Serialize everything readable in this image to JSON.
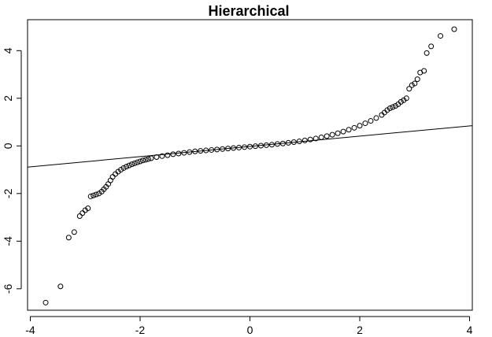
{
  "chart_data": {
    "type": "scatter",
    "title": "Hierarchical",
    "xlabel": "",
    "ylabel": "",
    "xlim": [
      -4.05,
      4.05
    ],
    "ylim": [
      -6.9,
      5.3
    ],
    "x_ticks": [
      -4,
      -2,
      0,
      2,
      4
    ],
    "x_tick_labels": [
      "-4",
      "-2",
      "0",
      "2",
      "4"
    ],
    "y_ticks": [
      -6,
      -4,
      -2,
      0,
      2,
      4
    ],
    "y_tick_labels": [
      "-6",
      "-4",
      "-2",
      "0",
      "2",
      "4"
    ],
    "grid": false,
    "reference_line": {
      "intercept": -0.02,
      "slope": 0.215
    },
    "series": [
      {
        "marker": "open-circle",
        "color": "#000000",
        "points": [
          [
            -3.72,
            -6.58
          ],
          [
            -3.45,
            -5.9
          ],
          [
            -3.3,
            -3.85
          ],
          [
            -3.2,
            -3.62
          ],
          [
            -3.1,
            -2.95
          ],
          [
            -3.05,
            -2.82
          ],
          [
            -3.0,
            -2.7
          ],
          [
            -2.95,
            -2.62
          ],
          [
            -2.9,
            -2.12
          ],
          [
            -2.85,
            -2.08
          ],
          [
            -2.8,
            -2.04
          ],
          [
            -2.75,
            -2.0
          ],
          [
            -2.7,
            -1.92
          ],
          [
            -2.66,
            -1.82
          ],
          [
            -2.62,
            -1.72
          ],
          [
            -2.58,
            -1.6
          ],
          [
            -2.54,
            -1.45
          ],
          [
            -2.5,
            -1.3
          ],
          [
            -2.45,
            -1.18
          ],
          [
            -2.4,
            -1.08
          ],
          [
            -2.35,
            -1.0
          ],
          [
            -2.3,
            -0.93
          ],
          [
            -2.25,
            -0.87
          ],
          [
            -2.2,
            -0.82
          ],
          [
            -2.15,
            -0.77
          ],
          [
            -2.1,
            -0.73
          ],
          [
            -2.05,
            -0.69
          ],
          [
            -2.0,
            -0.65
          ],
          [
            -1.95,
            -0.61
          ],
          [
            -1.9,
            -0.58
          ],
          [
            -1.85,
            -0.55
          ],
          [
            -1.8,
            -0.52
          ],
          [
            -1.7,
            -0.47
          ],
          [
            -1.6,
            -0.43
          ],
          [
            -1.5,
            -0.39
          ],
          [
            -1.4,
            -0.35
          ],
          [
            -1.3,
            -0.32
          ],
          [
            -1.2,
            -0.29
          ],
          [
            -1.1,
            -0.26
          ],
          [
            -1.0,
            -0.23
          ],
          [
            -0.9,
            -0.21
          ],
          [
            -0.8,
            -0.19
          ],
          [
            -0.7,
            -0.17
          ],
          [
            -0.6,
            -0.15
          ],
          [
            -0.5,
            -0.13
          ],
          [
            -0.4,
            -0.11
          ],
          [
            -0.3,
            -0.09
          ],
          [
            -0.2,
            -0.07
          ],
          [
            -0.1,
            -0.05
          ],
          [
            0.0,
            -0.03
          ],
          [
            0.1,
            -0.01
          ],
          [
            0.2,
            0.01
          ],
          [
            0.3,
            0.03
          ],
          [
            0.4,
            0.05
          ],
          [
            0.5,
            0.08
          ],
          [
            0.6,
            0.1
          ],
          [
            0.7,
            0.13
          ],
          [
            0.8,
            0.16
          ],
          [
            0.9,
            0.19
          ],
          [
            1.0,
            0.23
          ],
          [
            1.1,
            0.27
          ],
          [
            1.2,
            0.31
          ],
          [
            1.3,
            0.36
          ],
          [
            1.4,
            0.41
          ],
          [
            1.5,
            0.47
          ],
          [
            1.6,
            0.53
          ],
          [
            1.7,
            0.6
          ],
          [
            1.8,
            0.68
          ],
          [
            1.9,
            0.76
          ],
          [
            2.0,
            0.85
          ],
          [
            2.1,
            0.95
          ],
          [
            2.2,
            1.05
          ],
          [
            2.3,
            1.17
          ],
          [
            2.4,
            1.3
          ],
          [
            2.45,
            1.4
          ],
          [
            2.5,
            1.5
          ],
          [
            2.55,
            1.58
          ],
          [
            2.6,
            1.63
          ],
          [
            2.65,
            1.68
          ],
          [
            2.7,
            1.75
          ],
          [
            2.75,
            1.85
          ],
          [
            2.8,
            1.92
          ],
          [
            2.85,
            2.0
          ],
          [
            2.9,
            2.4
          ],
          [
            2.95,
            2.55
          ],
          [
            3.0,
            2.62
          ],
          [
            3.05,
            2.8
          ],
          [
            3.1,
            3.08
          ],
          [
            3.17,
            3.15
          ],
          [
            3.22,
            3.9
          ],
          [
            3.3,
            4.18
          ],
          [
            3.47,
            4.62
          ],
          [
            3.72,
            4.9
          ]
        ]
      }
    ]
  }
}
